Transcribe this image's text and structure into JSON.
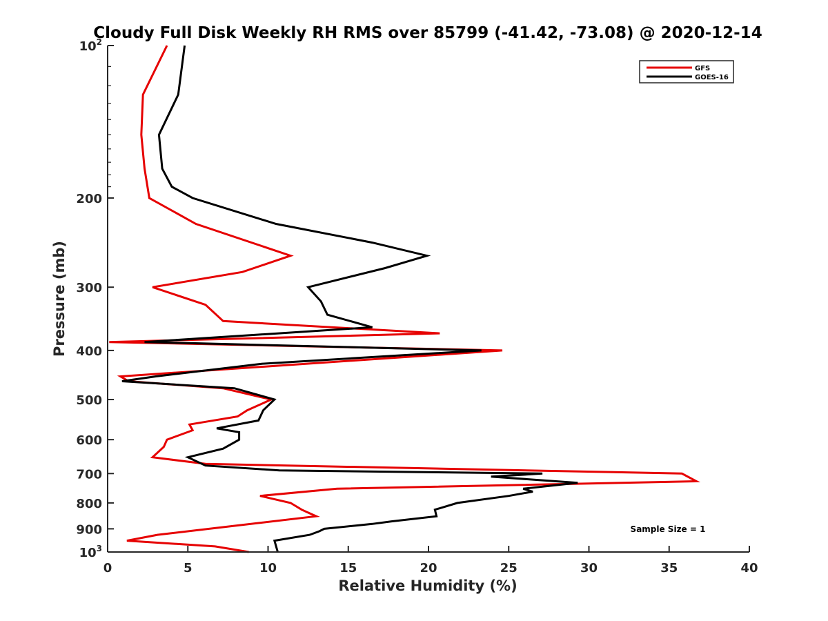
{
  "chart_data": {
    "type": "line",
    "title": "Cloudy Full Disk Weekly RH RMS over 85799 (-41.42, -73.08) @ 2020-12-14",
    "xlabel": "Relative Humidity (%)",
    "ylabel": "Pressure (mb)",
    "xlim": [
      0,
      40
    ],
    "ylim": [
      100,
      1000
    ],
    "y_scale": "log",
    "y_reversed": true,
    "grid": false,
    "legend_position": "top-right",
    "x_ticks": [
      "0",
      "5",
      "10",
      "15",
      "20",
      "25",
      "30",
      "35",
      "40"
    ],
    "y_ticks": [
      {
        "value": 100,
        "base": "10",
        "exp": "2"
      },
      {
        "value": 200,
        "label": "200"
      },
      {
        "value": 300,
        "label": "300"
      },
      {
        "value": 400,
        "label": "400"
      },
      {
        "value": 500,
        "label": "500"
      },
      {
        "value": 600,
        "label": "600"
      },
      {
        "value": 700,
        "label": "700"
      },
      {
        "value": 800,
        "label": "800"
      },
      {
        "value": 900,
        "label": "900"
      },
      {
        "value": 1000,
        "base": "10",
        "exp": "3"
      }
    ],
    "series": [
      {
        "name": "GFS",
        "color": "#e60000",
        "points": [
          [
            3.7,
            100
          ],
          [
            2.2,
            125
          ],
          [
            2.1,
            150
          ],
          [
            2.3,
            175
          ],
          [
            2.6,
            200
          ],
          [
            5.5,
            225
          ],
          [
            11.4,
            260
          ],
          [
            8.4,
            280
          ],
          [
            2.8,
            300
          ],
          [
            6.1,
            325
          ],
          [
            7.2,
            350
          ],
          [
            20.7,
            370
          ],
          [
            0.1,
            385
          ],
          [
            24.6,
            400
          ],
          [
            0.8,
            450
          ],
          [
            1.3,
            460
          ],
          [
            7.2,
            475
          ],
          [
            10.2,
            500
          ],
          [
            8.7,
            525
          ],
          [
            8.1,
            540
          ],
          [
            5.1,
            560
          ],
          [
            5.3,
            575
          ],
          [
            3.7,
            600
          ],
          [
            3.5,
            620
          ],
          [
            2.8,
            650
          ],
          [
            6.1,
            670
          ],
          [
            35.8,
            700
          ],
          [
            36.7,
            725
          ],
          [
            14.3,
            750
          ],
          [
            9.5,
            775
          ],
          [
            11.4,
            800
          ],
          [
            12.1,
            825
          ],
          [
            13.0,
            850
          ],
          [
            3.1,
            925
          ],
          [
            1.2,
            950
          ],
          [
            6.7,
            975
          ],
          [
            8.8,
            1000
          ]
        ]
      },
      {
        "name": "GOES-16",
        "color": "#000000",
        "points": [
          [
            4.8,
            100
          ],
          [
            4.4,
            125
          ],
          [
            3.2,
            150
          ],
          [
            3.4,
            175
          ],
          [
            4.0,
            190
          ],
          [
            5.3,
            200
          ],
          [
            10.5,
            225
          ],
          [
            16.5,
            245
          ],
          [
            19.9,
            260
          ],
          [
            17.3,
            275
          ],
          [
            12.5,
            300
          ],
          [
            13.3,
            320
          ],
          [
            13.7,
            340
          ],
          [
            16.5,
            360
          ],
          [
            2.3,
            385
          ],
          [
            23.3,
            400
          ],
          [
            9.6,
            425
          ],
          [
            3.0,
            450
          ],
          [
            0.9,
            460
          ],
          [
            7.9,
            475
          ],
          [
            10.4,
            500
          ],
          [
            9.7,
            525
          ],
          [
            9.4,
            550
          ],
          [
            6.8,
            570
          ],
          [
            8.2,
            580
          ],
          [
            8.2,
            600
          ],
          [
            7.2,
            625
          ],
          [
            5.0,
            650
          ],
          [
            6.1,
            675
          ],
          [
            10.7,
            690
          ],
          [
            27.1,
            700
          ],
          [
            23.9,
            710
          ],
          [
            29.3,
            730
          ],
          [
            25.9,
            750
          ],
          [
            26.5,
            760
          ],
          [
            25.0,
            775
          ],
          [
            21.8,
            800
          ],
          [
            20.4,
            825
          ],
          [
            20.5,
            850
          ],
          [
            17.7,
            870
          ],
          [
            16.5,
            880
          ],
          [
            13.5,
            900
          ],
          [
            13.2,
            910
          ],
          [
            12.6,
            925
          ],
          [
            10.4,
            950
          ],
          [
            10.6,
            1000
          ]
        ]
      }
    ],
    "annotation": "Sample Size = 1"
  }
}
